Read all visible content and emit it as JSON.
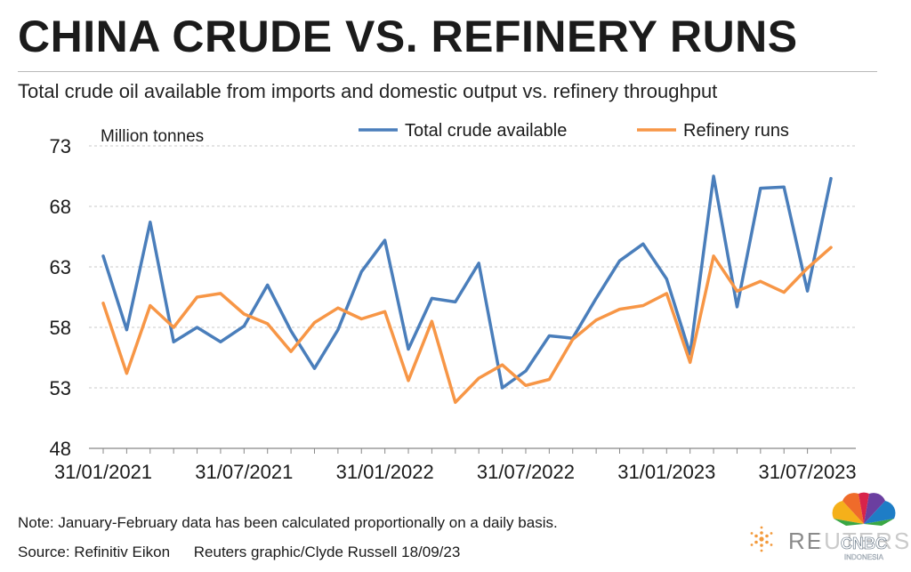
{
  "header": {
    "title": "CHINA CRUDE VS. REFINERY RUNS",
    "subtitle": "Total crude oil available from imports and domestic output vs. refinery throughput"
  },
  "footer": {
    "note": "Note: January-February data has been calculated proportionally on a daily basis.",
    "source": "Source: Refinitiv Eikon",
    "credit": "Reuters graphic/Clyde Russell 18/09/23"
  },
  "logos": {
    "reuters": "REUTERS",
    "cnbc": "CNBC",
    "cnbc_sub": "INDONESIA"
  },
  "chart_data": {
    "type": "line",
    "ylabel": "Million tonnes",
    "ylim": [
      48,
      73
    ],
    "yticks": [
      48,
      53,
      58,
      63,
      68,
      73
    ],
    "grid": "horizontal dashed",
    "legend_position": "top",
    "x": [
      "01/2021",
      "02/2021",
      "03/2021",
      "04/2021",
      "05/2021",
      "06/2021",
      "07/2021",
      "08/2021",
      "09/2021",
      "10/2021",
      "11/2021",
      "12/2021",
      "01/2022",
      "02/2022",
      "03/2022",
      "04/2022",
      "05/2022",
      "06/2022",
      "07/2022",
      "08/2022",
      "09/2022",
      "10/2022",
      "11/2022",
      "12/2022",
      "01/2023",
      "02/2023",
      "03/2023",
      "04/2023",
      "05/2023",
      "06/2023",
      "07/2023",
      "08/2023"
    ],
    "xtick_labels": [
      "31/01/2021",
      "31/07/2021",
      "31/01/2022",
      "31/07/2022",
      "31/01/2023",
      "31/07/2023"
    ],
    "xtick_index": [
      0,
      6,
      12,
      18,
      24,
      30
    ],
    "series": [
      {
        "name": "Total crude available",
        "color": "#4a7ebb",
        "values": [
          63.9,
          57.8,
          66.7,
          56.8,
          58.0,
          56.8,
          58.1,
          61.5,
          57.7,
          54.6,
          57.8,
          62.6,
          65.2,
          56.2,
          60.4,
          60.1,
          63.3,
          53.0,
          54.4,
          57.3,
          57.1,
          60.4,
          63.5,
          64.9,
          62.0,
          55.8,
          70.5,
          59.7,
          69.5,
          69.6,
          61.0,
          70.3
        ]
      },
      {
        "name": "Refinery runs",
        "color": "#f79646",
        "values": [
          60.0,
          54.2,
          59.8,
          58.0,
          60.5,
          60.8,
          59.1,
          58.3,
          56.0,
          58.4,
          59.6,
          58.7,
          59.3,
          53.6,
          58.5,
          51.8,
          53.8,
          54.9,
          53.2,
          53.7,
          57.0,
          58.6,
          59.5,
          59.8,
          60.8,
          55.1,
          63.9,
          61.0,
          61.8,
          60.9,
          62.9,
          64.6
        ]
      }
    ]
  }
}
